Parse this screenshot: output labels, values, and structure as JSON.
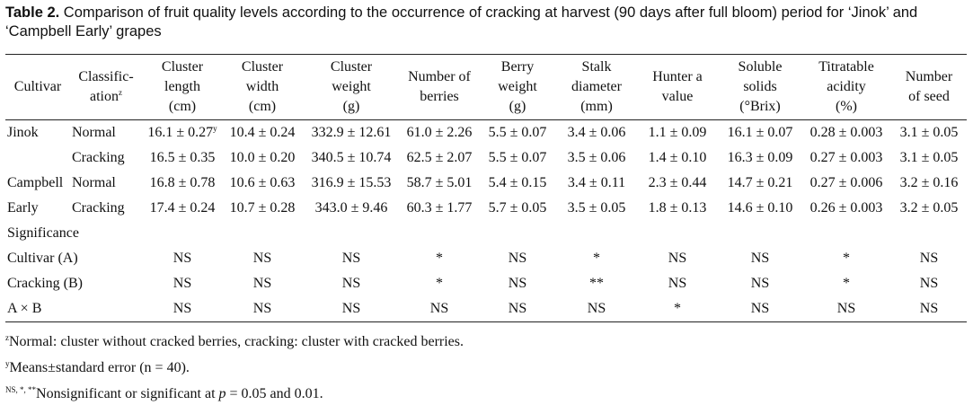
{
  "caption": {
    "label": "Table 2.",
    "text": " Comparison of fruit quality levels according to the occurrence of cracking at harvest (90 days after full bloom) period for ‘Jinok’ and ‘Campbell Early’ grapes"
  },
  "headers": [
    [
      "Cultivar"
    ],
    [
      "Classific-",
      "ation"
    ],
    [
      "Cluster",
      "length",
      "(cm)"
    ],
    [
      "Cluster",
      "width",
      "(cm)"
    ],
    [
      "Cluster",
      "weight",
      "(g)"
    ],
    [
      "Number of",
      "berries"
    ],
    [
      "Berry",
      "weight",
      "(g)"
    ],
    [
      "Stalk",
      "diameter",
      "(mm)"
    ],
    [
      "Hunter a",
      "value"
    ],
    [
      "Soluble",
      "solids",
      "(°Brix)"
    ],
    [
      "Titratable",
      "acidity",
      "(%)"
    ],
    [
      "Number",
      "of seed"
    ]
  ],
  "header_sup": "z",
  "data_rows": [
    {
      "cultivar": "Jinok",
      "classification": "Normal",
      "values": [
        "16.1 ± 0.27",
        "10.4 ± 0.24",
        "332.9 ± 12.61",
        "61.0 ± 2.26",
        "5.5 ± 0.07",
        "3.4 ± 0.06",
        "1.1 ± 0.09",
        "16.1 ± 0.07",
        "0.28 ± 0.003",
        "3.1 ± 0.05"
      ],
      "first_sup": "y"
    },
    {
      "cultivar": "",
      "classification": "Cracking",
      "values": [
        "16.5 ± 0.35",
        "10.0 ± 0.20",
        "340.5 ± 10.74",
        "62.5 ± 2.07",
        "5.5 ± 0.07",
        "3.5 ± 0.06",
        "1.4 ± 0.10",
        "16.3 ± 0.09",
        "0.27 ± 0.003",
        "3.1 ± 0.05"
      ]
    },
    {
      "cultivar": "Campbell",
      "classification": "Normal",
      "values": [
        "16.8 ± 0.78",
        "10.6 ± 0.63",
        "316.9 ± 15.53",
        "58.7 ± 5.01",
        "5.4 ± 0.15",
        "3.4 ± 0.11",
        "2.3 ± 0.44",
        "14.7 ± 0.21",
        "0.27 ± 0.006",
        "3.2 ± 0.16"
      ]
    },
    {
      "cultivar": "Early",
      "classification": "Cracking",
      "values": [
        "17.4 ± 0.24",
        "10.7 ± 0.28",
        "343.0 ± 9.46",
        "60.3 ± 1.77",
        "5.7 ± 0.05",
        "3.5 ± 0.05",
        "1.8 ± 0.13",
        "14.6 ± 0.10",
        "0.26 ± 0.003",
        "3.2 ± 0.05"
      ]
    }
  ],
  "significance_label": "Significance",
  "significance_rows": [
    {
      "label": "Cultivar (A)",
      "values": [
        "NS",
        "NS",
        "NS",
        "*",
        "NS",
        "*",
        "NS",
        "NS",
        "*",
        "NS"
      ]
    },
    {
      "label": "Cracking (B)",
      "values": [
        "NS",
        "NS",
        "NS",
        "*",
        "NS",
        "**",
        "NS",
        "NS",
        "*",
        "NS"
      ]
    },
    {
      "label": "A × B",
      "values": [
        "NS",
        "NS",
        "NS",
        "NS",
        "NS",
        "NS",
        "*",
        "NS",
        "NS",
        "NS"
      ]
    }
  ],
  "notes": {
    "z_mark": "z",
    "z_text": "Normal: cluster without cracked berries, cracking: cluster with cracked berries.",
    "y_mark": "y",
    "y_text": "Means±standard error (n = 40).",
    "ns_mark": "NS, *, **",
    "ns_text_a": "Nonsignificant or significant at ",
    "ns_p": "p",
    "ns_text_b": " = 0.05 and 0.01."
  }
}
